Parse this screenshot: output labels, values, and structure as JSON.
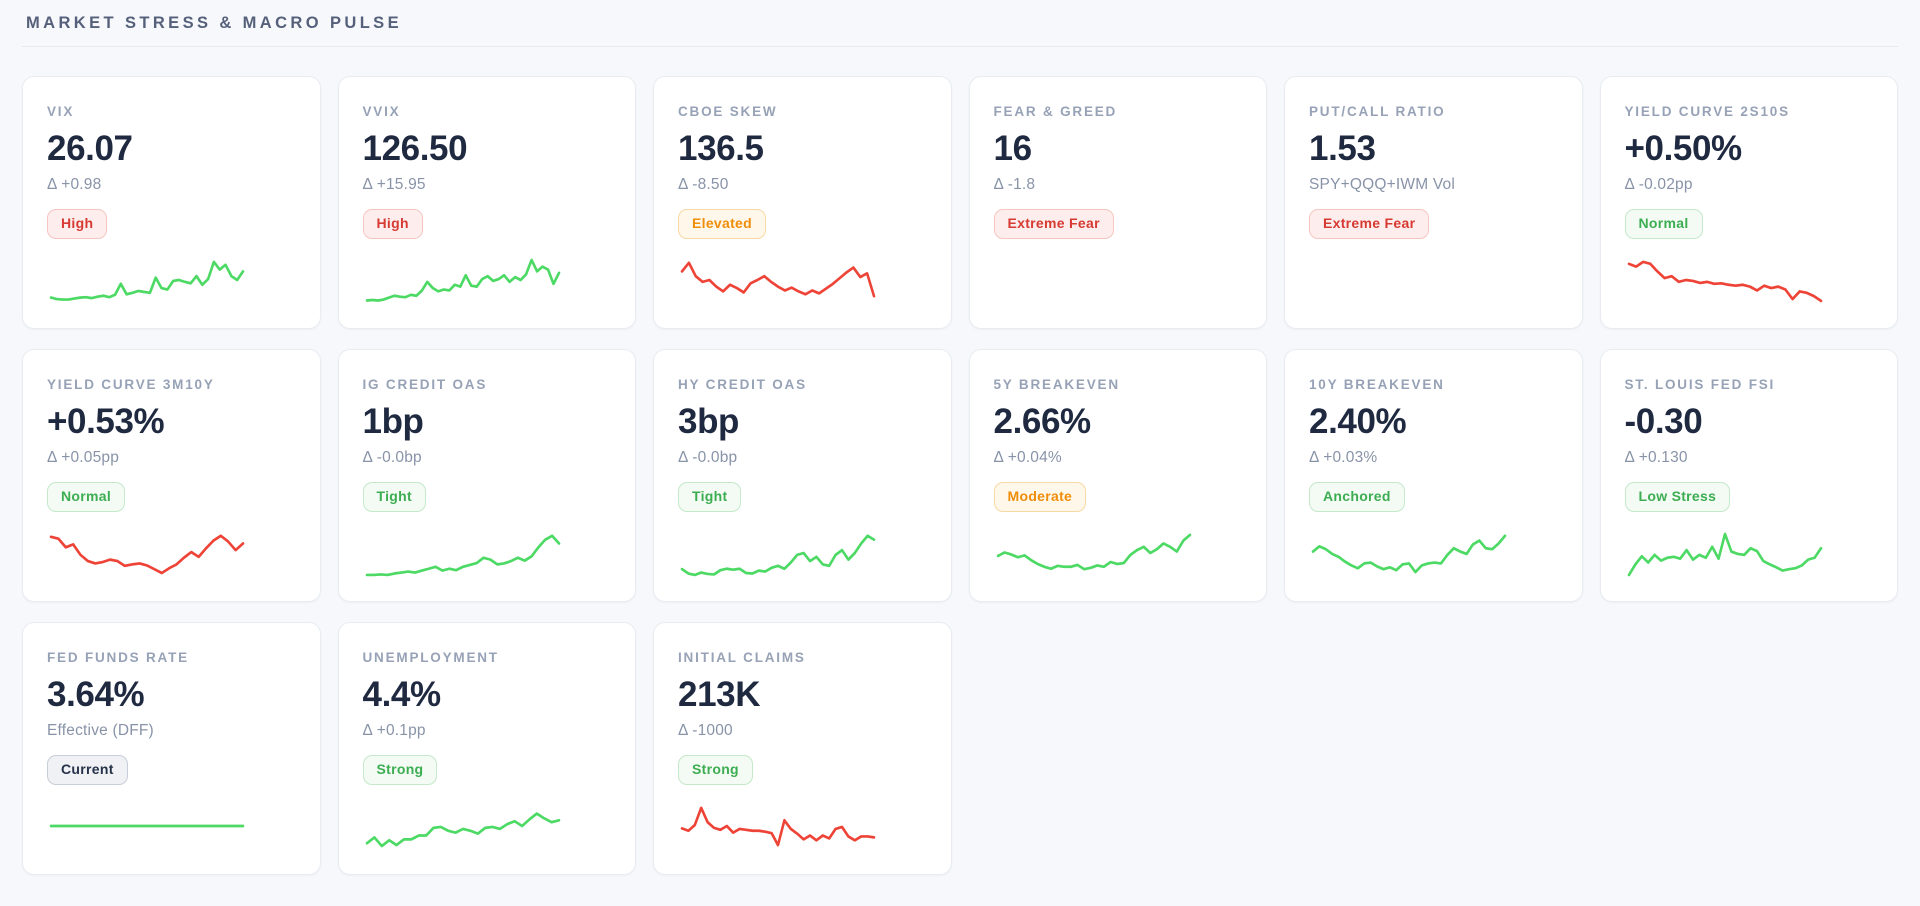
{
  "section": {
    "title": "MARKET STRESS & MACRO PULSE"
  },
  "colors": {
    "page_bg": "#f7f8fb",
    "card_bg": "#ffffff",
    "card_border": "#e8ecf2",
    "section_title": "#55617b",
    "card_title": "#97a2b7",
    "value_text": "#1f2940",
    "subtitle_text": "#8893a8",
    "spark_green": "#4cd964",
    "spark_red": "#ee4438",
    "badge_red_text": "#d63a32",
    "badge_red_bg": "#fdeeed",
    "badge_green_text": "#3dad52",
    "badge_green_bg": "#f3fbf4",
    "badge_orange_text": "#ef8d0c",
    "badge_orange_bg": "#fff7e9",
    "badge_gray_text": "#26324a",
    "badge_gray_bg": "#eff1f4"
  },
  "cards": [
    {
      "id": "vix",
      "title": "VIX",
      "value": "26.07",
      "subtitle": "Δ +0.98",
      "badge": {
        "label": "High",
        "variant": "red"
      },
      "chart": {
        "type": "line",
        "color": "green",
        "values": [
          13,
          10,
          9,
          9,
          11,
          13,
          14,
          12,
          15,
          17,
          14,
          19,
          42,
          20,
          23,
          27,
          25,
          23,
          55,
          33,
          30,
          48,
          50,
          46,
          43,
          58,
          40,
          52,
          88,
          72,
          82,
          58,
          50,
          68
        ]
      }
    },
    {
      "id": "vvix",
      "title": "VVIX",
      "value": "126.50",
      "subtitle": "Δ +15.95",
      "badge": {
        "label": "High",
        "variant": "red"
      },
      "chart": {
        "type": "line",
        "color": "green",
        "values": [
          7,
          8,
          7,
          9,
          13,
          17,
          15,
          14,
          19,
          17,
          28,
          46,
          33,
          26,
          30,
          28,
          40,
          36,
          60,
          38,
          36,
          52,
          58,
          48,
          52,
          60,
          46,
          56,
          50,
          62,
          92,
          68,
          78,
          72,
          42,
          65
        ]
      }
    },
    {
      "id": "cboe-skew",
      "title": "CBOE SKEW",
      "value": "136.5",
      "subtitle": "Δ -8.50",
      "badge": {
        "label": "Elevated",
        "variant": "orange"
      },
      "chart": {
        "type": "line",
        "color": "red",
        "values": [
          68,
          86,
          58,
          46,
          50,
          36,
          26,
          40,
          33,
          24,
          43,
          50,
          58,
          46,
          36,
          28,
          34,
          26,
          20,
          28,
          22,
          32,
          42,
          54,
          66,
          76,
          56,
          64,
          16
        ]
      }
    },
    {
      "id": "fear-greed",
      "title": "FEAR & GREED",
      "value": "16",
      "subtitle": "Δ -1.8",
      "badge": {
        "label": "Extreme Fear",
        "variant": "red"
      },
      "chart": null
    },
    {
      "id": "put-call-ratio",
      "title": "PUT/CALL RATIO",
      "value": "1.53",
      "subtitle": "SPY+QQQ+IWM Vol",
      "badge": {
        "label": "Extreme Fear",
        "variant": "red"
      },
      "chart": null
    },
    {
      "id": "yield-curve-2s10s",
      "title": "YIELD CURVE 2S10S",
      "value": "+0.50%",
      "subtitle": "Δ -0.02pp",
      "badge": {
        "label": "Normal",
        "variant": "green"
      },
      "chart": {
        "type": "line",
        "color": "red",
        "values": [
          84,
          78,
          88,
          84,
          68,
          54,
          58,
          46,
          50,
          48,
          44,
          46,
          42,
          43,
          40,
          38,
          40,
          36,
          28,
          38,
          33,
          36,
          30,
          10,
          26,
          23,
          16,
          6
        ]
      }
    },
    {
      "id": "yield-curve-3m10y",
      "title": "YIELD CURVE 3M10Y",
      "value": "+0.53%",
      "subtitle": "Δ +0.05pp",
      "badge": {
        "label": "Normal",
        "variant": "green"
      },
      "chart": {
        "type": "line",
        "color": "red",
        "values": [
          84,
          80,
          62,
          68,
          46,
          33,
          28,
          31,
          36,
          33,
          23,
          26,
          28,
          24,
          16,
          8,
          18,
          26,
          40,
          52,
          42,
          60,
          76,
          86,
          74,
          56,
          70
        ]
      }
    },
    {
      "id": "ig-credit-oas",
      "title": "IG CREDIT OAS",
      "value": "1bp",
      "subtitle": "Δ -0.0bp",
      "badge": {
        "label": "Tight",
        "variant": "green"
      },
      "chart": {
        "type": "line",
        "color": "green",
        "values": [
          4,
          4,
          5,
          4,
          7,
          9,
          11,
          9,
          13,
          17,
          21,
          13,
          17,
          14,
          21,
          25,
          29,
          40,
          36,
          26,
          28,
          33,
          40,
          34,
          43,
          62,
          78,
          86,
          70
        ]
      }
    },
    {
      "id": "hy-credit-oas",
      "title": "HY CREDIT OAS",
      "value": "3bp",
      "subtitle": "Δ -0.0bp",
      "badge": {
        "label": "Tight",
        "variant": "green"
      },
      "chart": {
        "type": "line",
        "color": "green",
        "values": [
          16,
          7,
          4,
          9,
          6,
          5,
          14,
          17,
          15,
          17,
          8,
          7,
          13,
          11,
          19,
          23,
          17,
          30,
          46,
          50,
          33,
          42,
          26,
          23,
          46,
          56,
          36,
          50,
          70,
          86,
          78
        ]
      }
    },
    {
      "id": "5y-breakeven",
      "title": "5Y BREAKEVEN",
      "value": "2.66%",
      "subtitle": "Δ +0.04%",
      "badge": {
        "label": "Moderate",
        "variant": "orange"
      },
      "chart": {
        "type": "line",
        "color": "green",
        "values": [
          44,
          51,
          47,
          41,
          45,
          35,
          27,
          21,
          17,
          23,
          21,
          21,
          25,
          16,
          19,
          24,
          21,
          31,
          27,
          29,
          46,
          56,
          63,
          50,
          58,
          70,
          63,
          53,
          76,
          88
        ]
      }
    },
    {
      "id": "10y-breakeven",
      "title": "10Y BREAKEVEN",
      "value": "2.40%",
      "subtitle": "Δ +0.03%",
      "badge": {
        "label": "Anchored",
        "variant": "green"
      },
      "chart": {
        "type": "line",
        "color": "green",
        "values": [
          53,
          64,
          58,
          48,
          42,
          32,
          24,
          18,
          28,
          30,
          22,
          16,
          20,
          14,
          26,
          28,
          10,
          24,
          28,
          30,
          28,
          46,
          60,
          53,
          48,
          68,
          76,
          60,
          58,
          70,
          86
        ]
      }
    },
    {
      "id": "st-louis-fed-fsi",
      "title": "ST. LOUIS FED FSI",
      "value": "-0.30",
      "subtitle": "Δ +0.130",
      "badge": {
        "label": "Low Stress",
        "variant": "green"
      },
      "chart": {
        "type": "line",
        "color": "green",
        "values": [
          4,
          26,
          43,
          30,
          46,
          34,
          40,
          42,
          38,
          56,
          36,
          46,
          40,
          63,
          38,
          90,
          53,
          48,
          46,
          60,
          54,
          33,
          26,
          20,
          13,
          16,
          18,
          24,
          36,
          40,
          60
        ]
      }
    },
    {
      "id": "fed-funds-rate",
      "title": "FED FUNDS RATE",
      "value": "3.64%",
      "subtitle": "Effective (DFF)",
      "badge": {
        "label": "Current",
        "variant": "gray"
      },
      "chart": {
        "type": "line",
        "color": "green",
        "values": [
          50,
          50
        ]
      }
    },
    {
      "id": "unemployment",
      "title": "UNEMPLOYMENT",
      "value": "4.4%",
      "subtitle": "Δ +0.1pp",
      "badge": {
        "label": "Strong",
        "variant": "green"
      },
      "chart": {
        "type": "line",
        "color": "green",
        "values": [
          14,
          26,
          8,
          20,
          10,
          22,
          22,
          30,
          30,
          46,
          48,
          40,
          36,
          44,
          40,
          34,
          46,
          48,
          44,
          54,
          60,
          50,
          64,
          76,
          66,
          58,
          62
        ]
      }
    },
    {
      "id": "initial-claims",
      "title": "INITIAL CLAIMS",
      "value": "213K",
      "subtitle": "Δ -1000",
      "badge": {
        "label": "Strong",
        "variant": "green"
      },
      "chart": {
        "type": "line",
        "color": "red",
        "values": [
          45,
          40,
          52,
          88,
          58,
          46,
          42,
          50,
          36,
          44,
          42,
          40,
          40,
          38,
          35,
          10,
          62,
          44,
          34,
          22,
          30,
          20,
          30,
          24,
          44,
          48,
          28,
          20,
          28,
          28,
          26
        ]
      }
    }
  ]
}
